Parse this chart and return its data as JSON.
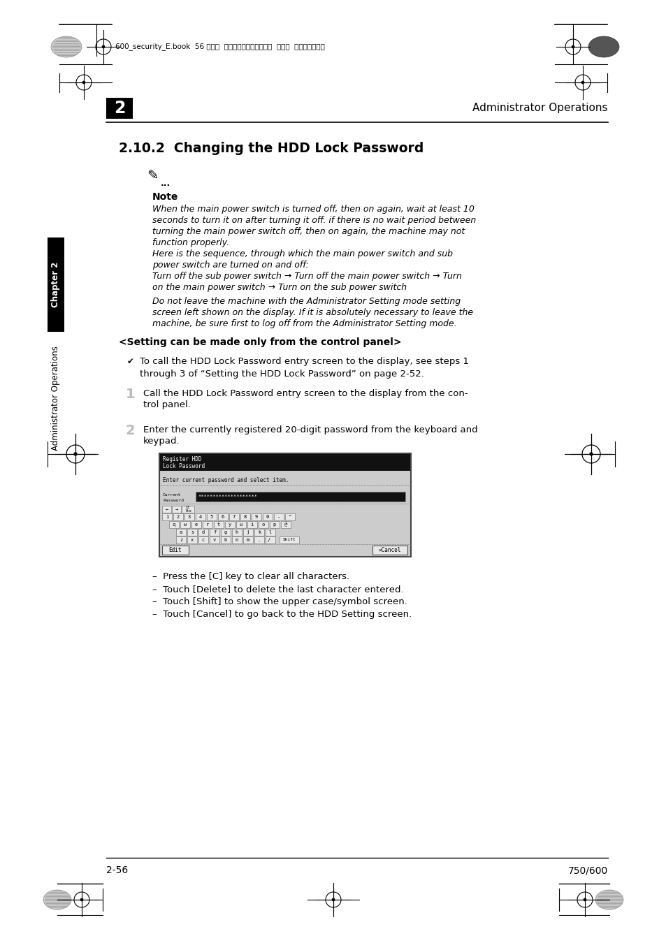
{
  "bg_color": "#ffffff",
  "header_text_right": "Administrator Operations",
  "chapter_num": "2",
  "section_title": "2.10.2  Changing the HDD Lock Password",
  "note_bold": "Note",
  "note_italic_lines": [
    "When the main power switch is turned off, then on again, wait at least 10",
    "seconds to turn it on after turning it off. if there is no wait period between",
    "turning the main power switch off, then on again, the machine may not",
    "function properly.",
    "Here is the sequence, through which the main power switch and sub",
    "power switch are turned on and off:",
    "Turn off the sub power switch → Turn off the main power switch → Turn",
    "on the main power switch → Turn on the sub power switch"
  ],
  "note_italic2_lines": [
    "Do not leave the machine with the Administrator Setting mode setting",
    "screen left shown on the display. If it is absolutely necessary to leave the",
    "machine, be sure first to log off from the Administrator Setting mode."
  ],
  "setting_bold": "<Setting can be made only from the control panel>",
  "checkmark_line1": "To call the HDD Lock Password entry screen to the display, see steps 1",
  "checkmark_line2": "through 3 of “Setting the HDD Lock Password” on page 2-52.",
  "step1_num": "1",
  "step1_line1": "Call the HDD Lock Password entry screen to the display from the con-",
  "step1_line2": "trol panel.",
  "step2_num": "2",
  "step2_line1": "Enter the currently registered 20-digit password from the keyboard and",
  "step2_line2": "keypad.",
  "bullet_lines": [
    "–  Press the [C] key to clear all characters.",
    "–  Touch [Delete] to delete the last character entered.",
    "–  Touch [Shift] to show the upper case/symbol screen.",
    "–  Touch [Cancel] to go back to the HDD Setting screen."
  ],
  "footer_left": "2-56",
  "footer_right": "750/600",
  "header_file": "600_security_E.book  56 ページ  ２００６年１２月２７日  水曜日  午前７時５０分",
  "sidebar_chapter": "Chapter 2",
  "sidebar_ops": "Administrator Operations"
}
